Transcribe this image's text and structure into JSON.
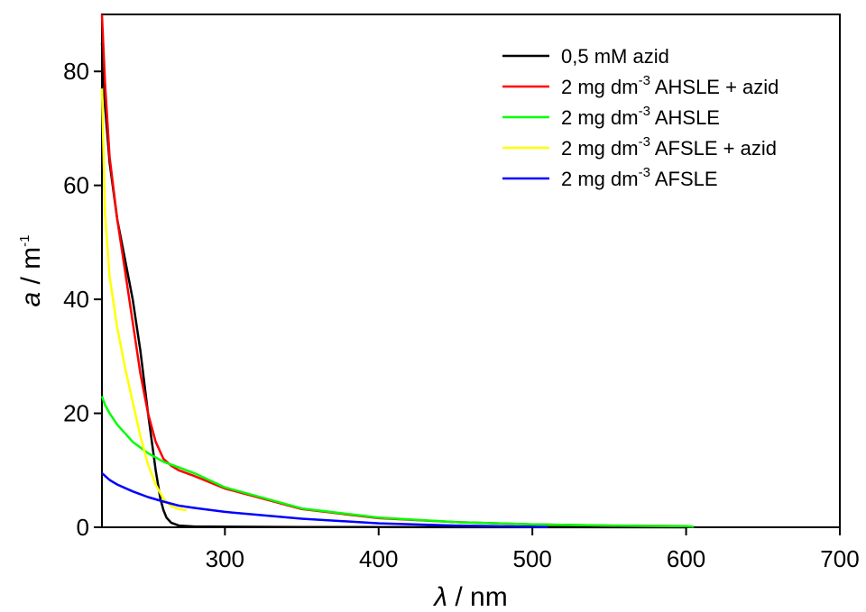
{
  "chart_data": {
    "type": "line",
    "title": "",
    "xlabel": {
      "symbol": "λ",
      "unit": " / nm"
    },
    "ylabel": {
      "symbol": "a",
      "unit_pre": " / m",
      "unit_exp": "-1"
    },
    "xlim": [
      220,
      700
    ],
    "ylim": [
      0,
      90
    ],
    "xticks": [
      300,
      400,
      500,
      600,
      700
    ],
    "yticks": [
      0,
      20,
      40,
      60,
      80
    ],
    "grid": false,
    "legend_position": "top-right",
    "series": [
      {
        "name": "0,5 mM azid",
        "legend_parts": [
          "0,5 mM azid"
        ],
        "color": "#000000",
        "x": [
          220,
          222,
          225,
          230,
          235,
          240,
          245,
          250,
          255,
          258,
          260,
          262,
          265,
          270,
          280,
          300,
          350,
          400,
          500,
          600
        ],
        "y": [
          85,
          74,
          64,
          54,
          47,
          40,
          31,
          20,
          10,
          5,
          3,
          1.7,
          0.8,
          0.3,
          0.15,
          0.1,
          0.05,
          0.03,
          0.02,
          0.0
        ]
      },
      {
        "name": "2 mg dm-3 AHSLE + azid",
        "legend_parts": [
          "2 mg dm",
          "-3",
          " AHSLE + azid"
        ],
        "color": "#ff0000",
        "x": [
          220,
          222,
          225,
          230,
          235,
          240,
          245,
          250,
          255,
          260,
          265,
          270,
          280,
          300,
          350,
          400,
          450,
          500,
          550,
          600,
          602
        ],
        "y": [
          90,
          78,
          65,
          54,
          45,
          36,
          27,
          20,
          15,
          12,
          10.8,
          10,
          9,
          6.8,
          3.2,
          1.6,
          0.9,
          0.5,
          0.3,
          0.2,
          0.1
        ]
      },
      {
        "name": "2 mg dm-3 AHSLE",
        "legend_parts": [
          "2 mg dm",
          "-3",
          " AHSLE"
        ],
        "color": "#00ff00",
        "x": [
          220,
          222,
          225,
          230,
          235,
          240,
          250,
          260,
          270,
          280,
          300,
          350,
          400,
          450,
          500,
          550,
          600,
          605
        ],
        "y": [
          23,
          21.5,
          20,
          18,
          16.5,
          15,
          13,
          11.5,
          10.5,
          9.5,
          7,
          3.3,
          1.7,
          0.9,
          0.5,
          0.3,
          0.2,
          0.1
        ]
      },
      {
        "name": "2 mg dm-3 AFSLE + azid",
        "legend_parts": [
          "2 mg dm",
          "-3",
          " AFSLE + azid"
        ],
        "color": "#ffff00",
        "x": [
          220,
          222,
          225,
          230,
          235,
          240,
          245,
          250,
          255,
          260,
          265,
          270,
          275
        ],
        "y": [
          77,
          55,
          44,
          35,
          28,
          22,
          16,
          11,
          7.5,
          5,
          3.7,
          3.2,
          3.0
        ]
      },
      {
        "name": "2 mg dm-3 AFSLE",
        "legend_parts": [
          "2 mg dm",
          "-3",
          " AFSLE"
        ],
        "color": "#0000ff",
        "x": [
          220,
          225,
          230,
          240,
          250,
          260,
          270,
          280,
          300,
          350,
          400,
          450,
          500,
          510
        ],
        "y": [
          9.5,
          8.3,
          7.5,
          6.3,
          5.3,
          4.5,
          3.8,
          3.4,
          2.7,
          1.5,
          0.7,
          0.3,
          0.1,
          0.05
        ]
      }
    ]
  }
}
